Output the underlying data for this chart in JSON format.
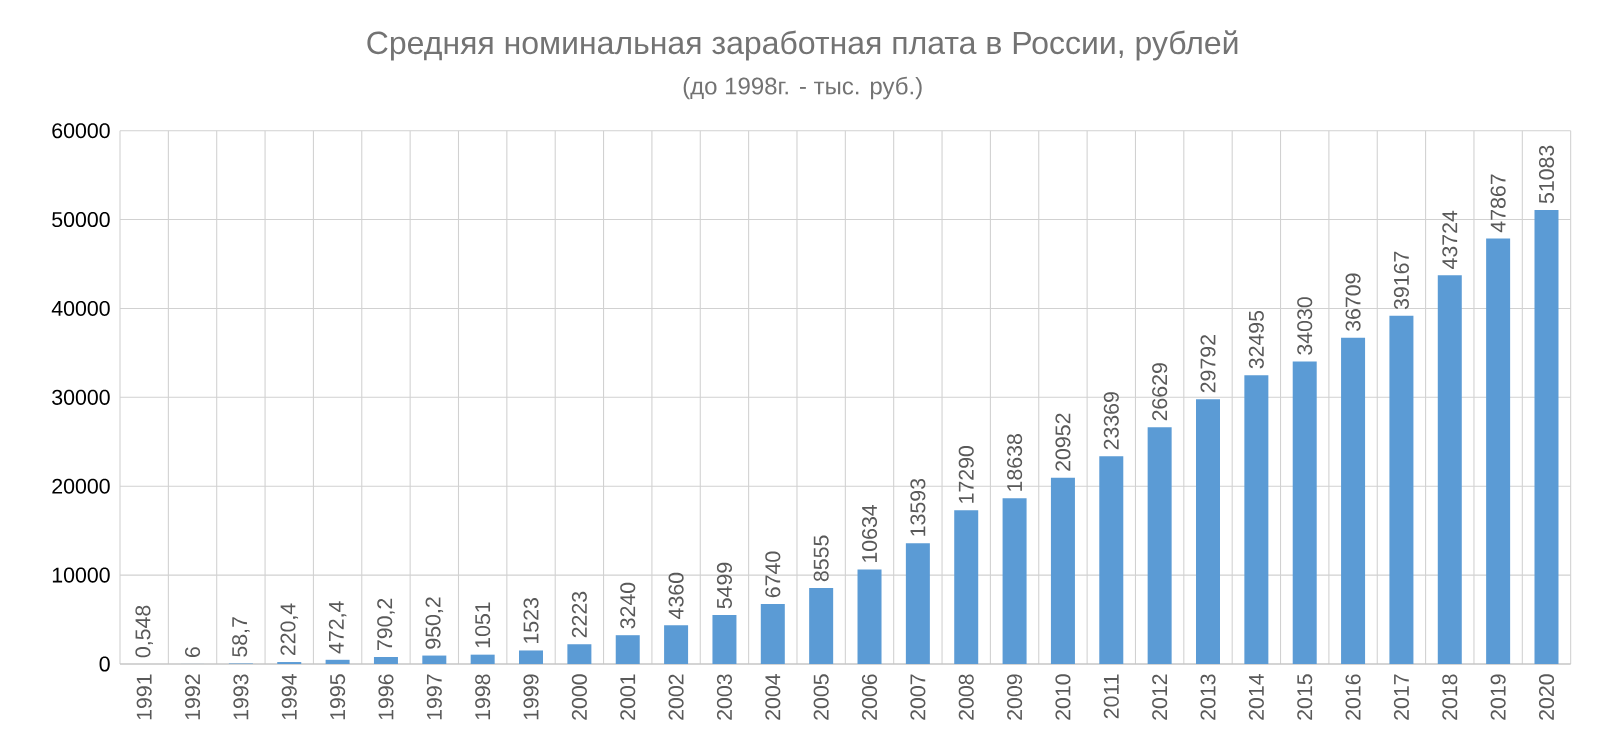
{
  "chart_data": {
    "type": "bar",
    "title": "Средняя номинальная заработная плата в России, рублей",
    "subtitle": "(до 1998г. - тыс. руб.)",
    "categories": [
      "1991",
      "1992",
      "1993",
      "1994",
      "1995",
      "1996",
      "1997",
      "1998",
      "1999",
      "2000",
      "2001",
      "2002",
      "2003",
      "2004",
      "2005",
      "2006",
      "2007",
      "2008",
      "2009",
      "2010",
      "2011",
      "2012",
      "2013",
      "2014",
      "2015",
      "2016",
      "2017",
      "2018",
      "2019",
      "2020"
    ],
    "values": [
      0.548,
      6,
      58.7,
      220.4,
      472.4,
      790.2,
      950.2,
      1051,
      1523,
      2223,
      3240,
      4360,
      5499,
      6740,
      8555,
      10634,
      13593,
      17290,
      18638,
      20952,
      23369,
      26629,
      29792,
      32495,
      34030,
      36709,
      39167,
      43724,
      47867,
      51083
    ],
    "value_labels": [
      "0,548",
      "6",
      "58,7",
      "220,4",
      "472,4",
      "790,2",
      "950,2",
      "1051",
      "1523",
      "2223",
      "3240",
      "4360",
      "5499",
      "6740",
      "8555",
      "10634",
      "13593",
      "17290",
      "18638",
      "20952",
      "23369",
      "26629",
      "29792",
      "32495",
      "34030",
      "36709",
      "39167",
      "43724",
      "47867",
      "51083"
    ],
    "color": "#5b9bd5",
    "ylim": [
      0,
      60000
    ],
    "yticks": [
      0,
      10000,
      20000,
      30000,
      40000,
      50000,
      60000
    ],
    "grid": true
  }
}
